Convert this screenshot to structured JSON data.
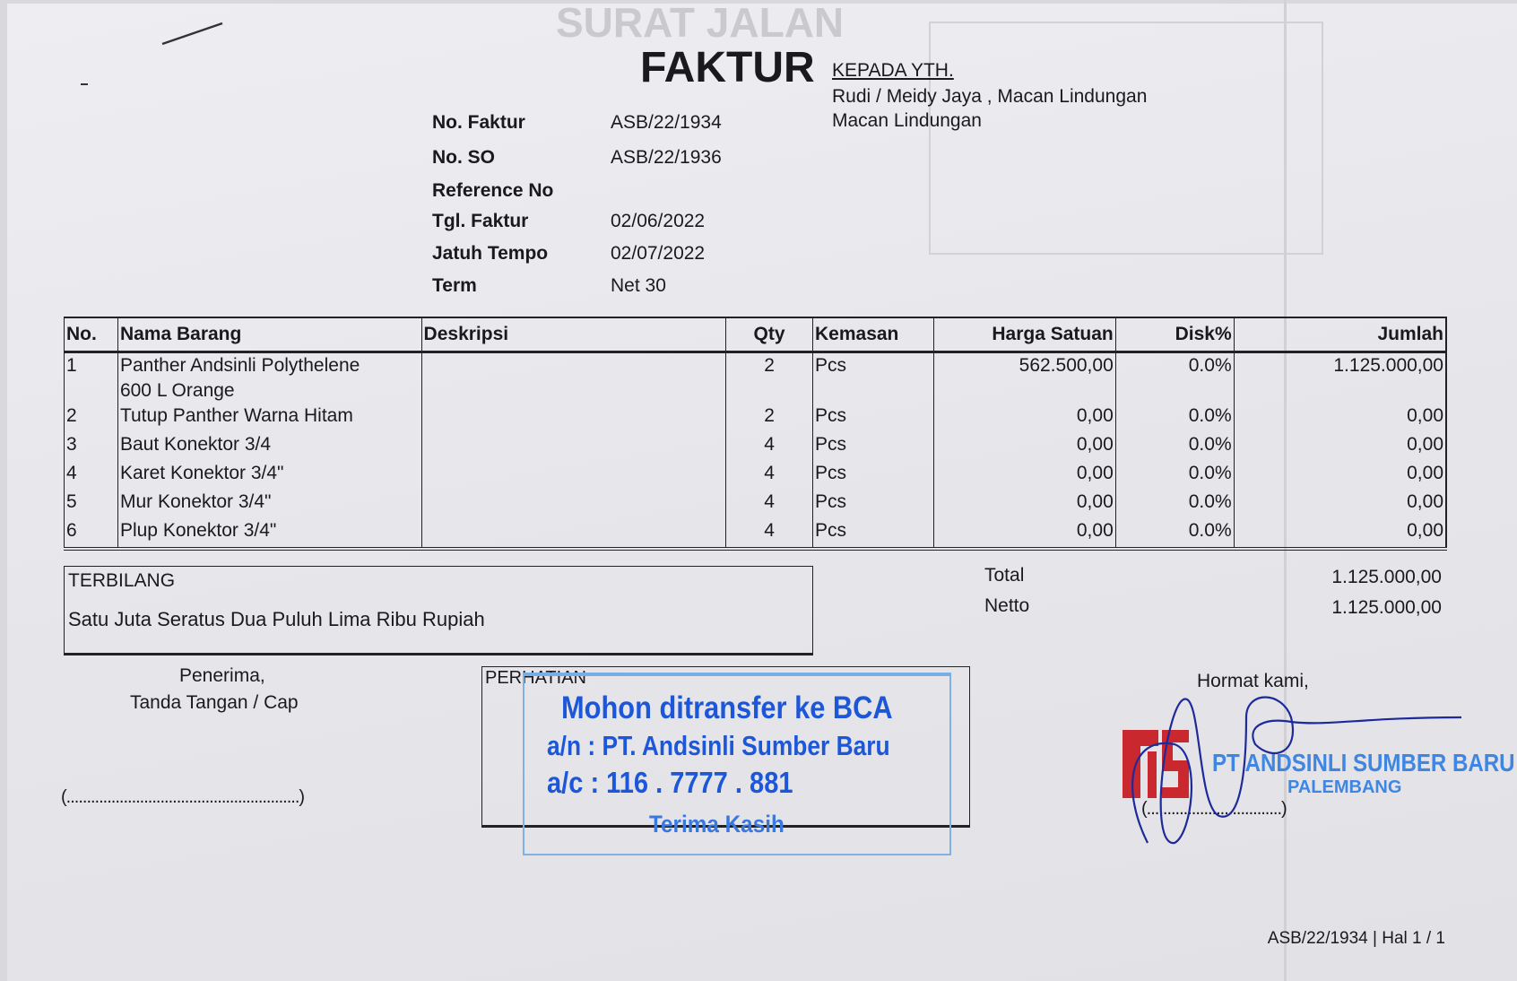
{
  "ghost": {
    "surat_jalan": "SURAT JALAN"
  },
  "header": {
    "title": "FAKTUR",
    "recipient_label": "KEPADA YTH.",
    "recipient_name": "Rudi / Meidy Jaya , Macan Lindungan",
    "recipient_address": "Macan Lindungan"
  },
  "info": [
    {
      "label": "No. Faktur",
      "value": "ASB/22/1934"
    },
    {
      "label": "No. SO",
      "value": "ASB/22/1936"
    },
    {
      "label": "Reference No",
      "value": ""
    },
    {
      "label": "Tgl. Faktur",
      "value": "02/06/2022"
    },
    {
      "label": "Jatuh Tempo",
      "value": "02/07/2022"
    },
    {
      "label": "Term",
      "value": "Net 30"
    }
  ],
  "table": {
    "columns": [
      "No.",
      "Nama Barang",
      "Deskripsi",
      "Qty",
      "Kemasan",
      "Harga Satuan",
      "Disk%",
      "Jumlah"
    ],
    "rows": [
      {
        "no": "1",
        "name": "Panther Andsinli Polythelene",
        "name2": "600 L Orange",
        "desc": "",
        "qty": "2",
        "unit": "Pcs",
        "price": "562.500,00",
        "disc": "0.0%",
        "total": "1.125.000,00"
      },
      {
        "no": "2",
        "name": "Tutup Panther Warna Hitam",
        "name2": "",
        "desc": "",
        "qty": "2",
        "unit": "Pcs",
        "price": "0,00",
        "disc": "0.0%",
        "total": "0,00"
      },
      {
        "no": "3",
        "name": "Baut Konektor 3/4",
        "name2": "",
        "desc": "",
        "qty": "4",
        "unit": "Pcs",
        "price": "0,00",
        "disc": "0.0%",
        "total": "0,00"
      },
      {
        "no": "4",
        "name": "Karet Konektor 3/4\"",
        "name2": "",
        "desc": "",
        "qty": "4",
        "unit": "Pcs",
        "price": "0,00",
        "disc": "0.0%",
        "total": "0,00"
      },
      {
        "no": "5",
        "name": "Mur Konektor 3/4\"",
        "name2": "",
        "desc": "",
        "qty": "4",
        "unit": "Pcs",
        "price": "0,00",
        "disc": "0.0%",
        "total": "0,00"
      },
      {
        "no": "6",
        "name": "Plup Konektor 3/4\"",
        "name2": "",
        "desc": "",
        "qty": "4",
        "unit": "Pcs",
        "price": "0,00",
        "disc": "0.0%",
        "total": "0,00"
      }
    ]
  },
  "terbilang": {
    "label": "TERBILANG",
    "text": "Satu Juta Seratus Dua Puluh Lima Ribu Rupiah"
  },
  "totals": {
    "total_label": "Total",
    "total_value": "1.125.000,00",
    "netto_label": "Netto",
    "netto_value": "1.125.000,00"
  },
  "receiver": {
    "line1": "Penerima,",
    "line2": "Tanda Tangan / Cap",
    "sign_line": "(.........................................................)"
  },
  "notice": {
    "label": "PERHATIAN",
    "stamp_line1": "Mohon ditransfer ke BCA",
    "stamp_line2": "a/n : PT. Andsinli Sumber Baru",
    "stamp_line3": "a/c : 116 . 7777 . 881",
    "stamp_line4": "Terima Kasih"
  },
  "sender": {
    "greeting": "Hormat kami,",
    "company_stamp": "PT ANDSINLI SUMBER BARU",
    "company_city": "PALEMBANG",
    "logo_text": "ASB",
    "sign_line": "(.................................)"
  },
  "footer": {
    "page_ref": "ASB/22/1934 | Hal 1 / 1"
  },
  "colors": {
    "stamp_blue": "#1d57d9",
    "logo_red": "#c8282e",
    "signature_ink": "#1e2a9a"
  }
}
